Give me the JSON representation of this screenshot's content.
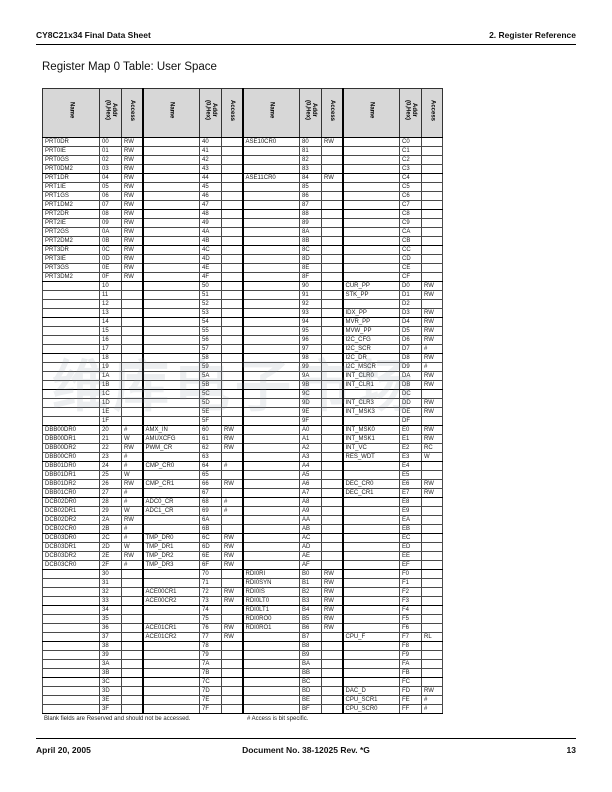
{
  "page_header": {
    "left": "CY8C21x34 Final Data Sheet",
    "right": "2.  Register Reference"
  },
  "title": "Register Map 0 Table: User Space",
  "watermark": "维库电子市场",
  "table": {
    "group_headers": {
      "name": "Name",
      "addr": "Addr\n(0,Hex)",
      "access": "Access"
    },
    "rows": [
      [
        [
          "PRT0DR",
          "00",
          "RW"
        ],
        [
          "",
          "40",
          ""
        ],
        [
          "ASE10CR0",
          "80",
          "RW"
        ],
        [
          "",
          "C0",
          ""
        ]
      ],
      [
        [
          "PRT0IE",
          "01",
          "RW"
        ],
        [
          "",
          "41",
          ""
        ],
        [
          "",
          "81",
          ""
        ],
        [
          "",
          "C1",
          ""
        ]
      ],
      [
        [
          "PRT0GS",
          "02",
          "RW"
        ],
        [
          "",
          "42",
          ""
        ],
        [
          "",
          "82",
          ""
        ],
        [
          "",
          "C2",
          ""
        ]
      ],
      [
        [
          "PRT0DM2",
          "03",
          "RW"
        ],
        [
          "",
          "43",
          ""
        ],
        [
          "",
          "83",
          ""
        ],
        [
          "",
          "C3",
          ""
        ]
      ],
      [
        [
          "PRT1DR",
          "04",
          "RW"
        ],
        [
          "",
          "44",
          ""
        ],
        [
          "ASE11CR0",
          "84",
          "RW"
        ],
        [
          "",
          "C4",
          ""
        ]
      ],
      [
        [
          "PRT1IE",
          "05",
          "RW"
        ],
        [
          "",
          "45",
          ""
        ],
        [
          "",
          "85",
          ""
        ],
        [
          "",
          "C5",
          ""
        ]
      ],
      [
        [
          "PRT1GS",
          "06",
          "RW"
        ],
        [
          "",
          "46",
          ""
        ],
        [
          "",
          "86",
          ""
        ],
        [
          "",
          "C6",
          ""
        ]
      ],
      [
        [
          "PRT1DM2",
          "07",
          "RW"
        ],
        [
          "",
          "47",
          ""
        ],
        [
          "",
          "87",
          ""
        ],
        [
          "",
          "C7",
          ""
        ]
      ],
      [
        [
          "PRT2DR",
          "08",
          "RW"
        ],
        [
          "",
          "48",
          ""
        ],
        [
          "",
          "88",
          ""
        ],
        [
          "",
          "C8",
          ""
        ]
      ],
      [
        [
          "PRT2IE",
          "09",
          "RW"
        ],
        [
          "",
          "49",
          ""
        ],
        [
          "",
          "89",
          ""
        ],
        [
          "",
          "C9",
          ""
        ]
      ],
      [
        [
          "PRT2GS",
          "0A",
          "RW"
        ],
        [
          "",
          "4A",
          ""
        ],
        [
          "",
          "8A",
          ""
        ],
        [
          "",
          "CA",
          ""
        ]
      ],
      [
        [
          "PRT2DM2",
          "0B",
          "RW"
        ],
        [
          "",
          "4B",
          ""
        ],
        [
          "",
          "8B",
          ""
        ],
        [
          "",
          "CB",
          ""
        ]
      ],
      [
        [
          "PRT3DR",
          "0C",
          "RW"
        ],
        [
          "",
          "4C",
          ""
        ],
        [
          "",
          "8C",
          ""
        ],
        [
          "",
          "CC",
          ""
        ]
      ],
      [
        [
          "PRT3IE",
          "0D",
          "RW"
        ],
        [
          "",
          "4D",
          ""
        ],
        [
          "",
          "8D",
          ""
        ],
        [
          "",
          "CD",
          ""
        ]
      ],
      [
        [
          "PRT3GS",
          "0E",
          "RW"
        ],
        [
          "",
          "4E",
          ""
        ],
        [
          "",
          "8E",
          ""
        ],
        [
          "",
          "CE",
          ""
        ]
      ],
      [
        [
          "PRT3DM2",
          "0F",
          "RW"
        ],
        [
          "",
          "4F",
          ""
        ],
        [
          "",
          "8F",
          ""
        ],
        [
          "",
          "CF",
          ""
        ]
      ],
      [
        [
          "",
          "10",
          ""
        ],
        [
          "",
          "50",
          ""
        ],
        [
          "",
          "90",
          ""
        ],
        [
          "CUR_PP",
          "D0",
          "RW"
        ]
      ],
      [
        [
          "",
          "11",
          ""
        ],
        [
          "",
          "51",
          ""
        ],
        [
          "",
          "91",
          ""
        ],
        [
          "STK_PP",
          "D1",
          "RW"
        ]
      ],
      [
        [
          "",
          "12",
          ""
        ],
        [
          "",
          "52",
          ""
        ],
        [
          "",
          "92",
          ""
        ],
        [
          "",
          "D2",
          ""
        ]
      ],
      [
        [
          "",
          "13",
          ""
        ],
        [
          "",
          "53",
          ""
        ],
        [
          "",
          "93",
          ""
        ],
        [
          "IDX_PP",
          "D3",
          "RW"
        ]
      ],
      [
        [
          "",
          "14",
          ""
        ],
        [
          "",
          "54",
          ""
        ],
        [
          "",
          "94",
          ""
        ],
        [
          "MVR_PP",
          "D4",
          "RW"
        ]
      ],
      [
        [
          "",
          "15",
          ""
        ],
        [
          "",
          "55",
          ""
        ],
        [
          "",
          "95",
          ""
        ],
        [
          "MVW_PP",
          "D5",
          "RW"
        ]
      ],
      [
        [
          "",
          "16",
          ""
        ],
        [
          "",
          "56",
          ""
        ],
        [
          "",
          "96",
          ""
        ],
        [
          "I2C_CFG",
          "D6",
          "RW"
        ]
      ],
      [
        [
          "",
          "17",
          ""
        ],
        [
          "",
          "57",
          ""
        ],
        [
          "",
          "97",
          ""
        ],
        [
          "I2C_SCR",
          "D7",
          "#"
        ]
      ],
      [
        [
          "",
          "18",
          ""
        ],
        [
          "",
          "58",
          ""
        ],
        [
          "",
          "98",
          ""
        ],
        [
          "I2C_DR",
          "D8",
          "RW"
        ]
      ],
      [
        [
          "",
          "19",
          ""
        ],
        [
          "",
          "59",
          ""
        ],
        [
          "",
          "99",
          ""
        ],
        [
          "I2C_MSCR",
          "D9",
          "#"
        ]
      ],
      [
        [
          "",
          "1A",
          ""
        ],
        [
          "",
          "5A",
          ""
        ],
        [
          "",
          "9A",
          ""
        ],
        [
          "INT_CLR0",
          "DA",
          "RW"
        ]
      ],
      [
        [
          "",
          "1B",
          ""
        ],
        [
          "",
          "5B",
          ""
        ],
        [
          "",
          "9B",
          ""
        ],
        [
          "INT_CLR1",
          "DB",
          "RW"
        ]
      ],
      [
        [
          "",
          "1C",
          ""
        ],
        [
          "",
          "5C",
          ""
        ],
        [
          "",
          "9C",
          ""
        ],
        [
          "",
          "DC",
          ""
        ]
      ],
      [
        [
          "",
          "1D",
          ""
        ],
        [
          "",
          "5D",
          ""
        ],
        [
          "",
          "9D",
          ""
        ],
        [
          "INT_CLR3",
          "DD",
          "RW"
        ]
      ],
      [
        [
          "",
          "1E",
          ""
        ],
        [
          "",
          "5E",
          ""
        ],
        [
          "",
          "9E",
          ""
        ],
        [
          "INT_MSK3",
          "DE",
          "RW"
        ]
      ],
      [
        [
          "",
          "1F",
          ""
        ],
        [
          "",
          "5F",
          ""
        ],
        [
          "",
          "9F",
          ""
        ],
        [
          "",
          "DF",
          ""
        ]
      ],
      [
        [
          "DBB00DR0",
          "20",
          "#"
        ],
        [
          "AMX_IN",
          "60",
          "RW"
        ],
        [
          "",
          "A0",
          ""
        ],
        [
          "INT_MSK0",
          "E0",
          "RW"
        ]
      ],
      [
        [
          "DBB00DR1",
          "21",
          "W"
        ],
        [
          "AMUXCFG",
          "61",
          "RW"
        ],
        [
          "",
          "A1",
          ""
        ],
        [
          "INT_MSK1",
          "E1",
          "RW"
        ]
      ],
      [
        [
          "DBB00DR2",
          "22",
          "RW"
        ],
        [
          "PWM_CR",
          "62",
          "RW"
        ],
        [
          "",
          "A2",
          ""
        ],
        [
          "INT_VC",
          "E2",
          "RC"
        ]
      ],
      [
        [
          "DBB00CR0",
          "23",
          "#"
        ],
        [
          "",
          "63",
          ""
        ],
        [
          "",
          "A3",
          ""
        ],
        [
          "RES_WDT",
          "E3",
          "W"
        ]
      ],
      [
        [
          "DBB01DR0",
          "24",
          "#"
        ],
        [
          "CMP_CR0",
          "64",
          "#"
        ],
        [
          "",
          "A4",
          ""
        ],
        [
          "",
          "E4",
          ""
        ]
      ],
      [
        [
          "DBB01DR1",
          "25",
          "W"
        ],
        [
          "",
          "65",
          ""
        ],
        [
          "",
          "A5",
          ""
        ],
        [
          "",
          "E5",
          ""
        ]
      ],
      [
        [
          "DBB01DR2",
          "26",
          "RW"
        ],
        [
          "CMP_CR1",
          "66",
          "RW"
        ],
        [
          "",
          "A6",
          ""
        ],
        [
          "DEC_CR0",
          "E6",
          "RW"
        ]
      ],
      [
        [
          "DBB01CR0",
          "27",
          "#"
        ],
        [
          "",
          "67",
          ""
        ],
        [
          "",
          "A7",
          ""
        ],
        [
          "DEC_CR1",
          "E7",
          "RW"
        ]
      ],
      [
        [
          "DCB02DR0",
          "28",
          "#"
        ],
        [
          "ADC0_CR",
          "68",
          "#"
        ],
        [
          "",
          "A8",
          ""
        ],
        [
          "",
          "E8",
          ""
        ]
      ],
      [
        [
          "DCB02DR1",
          "29",
          "W"
        ],
        [
          "ADC1_CR",
          "69",
          "#"
        ],
        [
          "",
          "A9",
          ""
        ],
        [
          "",
          "E9",
          ""
        ]
      ],
      [
        [
          "DCB02DR2",
          "2A",
          "RW"
        ],
        [
          "",
          "6A",
          ""
        ],
        [
          "",
          "AA",
          ""
        ],
        [
          "",
          "EA",
          ""
        ]
      ],
      [
        [
          "DCB02CR0",
          "2B",
          "#"
        ],
        [
          "",
          "6B",
          ""
        ],
        [
          "",
          "AB",
          ""
        ],
        [
          "",
          "EB",
          ""
        ]
      ],
      [
        [
          "DCB03DR0",
          "2C",
          "#"
        ],
        [
          "TMP_DR0",
          "6C",
          "RW"
        ],
        [
          "",
          "AC",
          ""
        ],
        [
          "",
          "EC",
          ""
        ]
      ],
      [
        [
          "DCB03DR1",
          "2D",
          "W"
        ],
        [
          "TMP_DR1",
          "6D",
          "RW"
        ],
        [
          "",
          "AD",
          ""
        ],
        [
          "",
          "ED",
          ""
        ]
      ],
      [
        [
          "DCB03DR2",
          "2E",
          "RW"
        ],
        [
          "TMP_DR2",
          "6E",
          "RW"
        ],
        [
          "",
          "AE",
          ""
        ],
        [
          "",
          "EE",
          ""
        ]
      ],
      [
        [
          "DCB03CR0",
          "2F",
          "#"
        ],
        [
          "TMP_DR3",
          "6F",
          "RW"
        ],
        [
          "",
          "AF",
          ""
        ],
        [
          "",
          "EF",
          ""
        ]
      ],
      [
        [
          "",
          "30",
          ""
        ],
        [
          "",
          "70",
          ""
        ],
        [
          "RDI0RI",
          "B0",
          "RW"
        ],
        [
          "",
          "F0",
          ""
        ]
      ],
      [
        [
          "",
          "31",
          ""
        ],
        [
          "",
          "71",
          ""
        ],
        [
          "RDI0SYN",
          "B1",
          "RW"
        ],
        [
          "",
          "F1",
          ""
        ]
      ],
      [
        [
          "",
          "32",
          ""
        ],
        [
          "ACE00CR1",
          "72",
          "RW"
        ],
        [
          "RDI0IS",
          "B2",
          "RW"
        ],
        [
          "",
          "F2",
          ""
        ]
      ],
      [
        [
          "",
          "33",
          ""
        ],
        [
          "ACE00CR2",
          "73",
          "RW"
        ],
        [
          "RDI0LT0",
          "B3",
          "RW"
        ],
        [
          "",
          "F3",
          ""
        ]
      ],
      [
        [
          "",
          "34",
          ""
        ],
        [
          "",
          "74",
          ""
        ],
        [
          "RDI0LT1",
          "B4",
          "RW"
        ],
        [
          "",
          "F4",
          ""
        ]
      ],
      [
        [
          "",
          "35",
          ""
        ],
        [
          "",
          "75",
          ""
        ],
        [
          "RDI0RO0",
          "B5",
          "RW"
        ],
        [
          "",
          "F5",
          ""
        ]
      ],
      [
        [
          "",
          "36",
          ""
        ],
        [
          "ACE01CR1",
          "76",
          "RW"
        ],
        [
          "RDI0RO1",
          "B6",
          "RW"
        ],
        [
          "",
          "F6",
          ""
        ]
      ],
      [
        [
          "",
          "37",
          ""
        ],
        [
          "ACE01CR2",
          "77",
          "RW"
        ],
        [
          "",
          "B7",
          ""
        ],
        [
          "CPU_F",
          "F7",
          "RL"
        ]
      ],
      [
        [
          "",
          "38",
          ""
        ],
        [
          "",
          "78",
          ""
        ],
        [
          "",
          "B8",
          ""
        ],
        [
          "",
          "F8",
          ""
        ]
      ],
      [
        [
          "",
          "39",
          ""
        ],
        [
          "",
          "79",
          ""
        ],
        [
          "",
          "B9",
          ""
        ],
        [
          "",
          "F9",
          ""
        ]
      ],
      [
        [
          "",
          "3A",
          ""
        ],
        [
          "",
          "7A",
          ""
        ],
        [
          "",
          "BA",
          ""
        ],
        [
          "",
          "FA",
          ""
        ]
      ],
      [
        [
          "",
          "3B",
          ""
        ],
        [
          "",
          "7B",
          ""
        ],
        [
          "",
          "BB",
          ""
        ],
        [
          "",
          "FB",
          ""
        ]
      ],
      [
        [
          "",
          "3C",
          ""
        ],
        [
          "",
          "7C",
          ""
        ],
        [
          "",
          "BC",
          ""
        ],
        [
          "",
          "FC",
          ""
        ]
      ],
      [
        [
          "",
          "3D",
          ""
        ],
        [
          "",
          "7D",
          ""
        ],
        [
          "",
          "BD",
          ""
        ],
        [
          "DAC_D",
          "FD",
          "RW"
        ]
      ],
      [
        [
          "",
          "3E",
          ""
        ],
        [
          "",
          "7E",
          ""
        ],
        [
          "",
          "BE",
          ""
        ],
        [
          "CPU_SCR1",
          "FE",
          "#"
        ]
      ],
      [
        [
          "",
          "3F",
          ""
        ],
        [
          "",
          "7F",
          ""
        ],
        [
          "",
          "BF",
          ""
        ],
        [
          "CPU_SCR0",
          "FF",
          "#"
        ]
      ]
    ]
  },
  "footnotes": {
    "blank": "Blank fields are Reserved and should not be accessed.",
    "hash": "# Access is bit specific."
  },
  "page_footer": {
    "date": "April 20, 2005",
    "doc": "Document No. 38-12025 Rev. *G",
    "page": "13"
  },
  "colors": {
    "header_bg": "#d7d7d7",
    "border": "#000000",
    "text": "#1a1a1a"
  }
}
